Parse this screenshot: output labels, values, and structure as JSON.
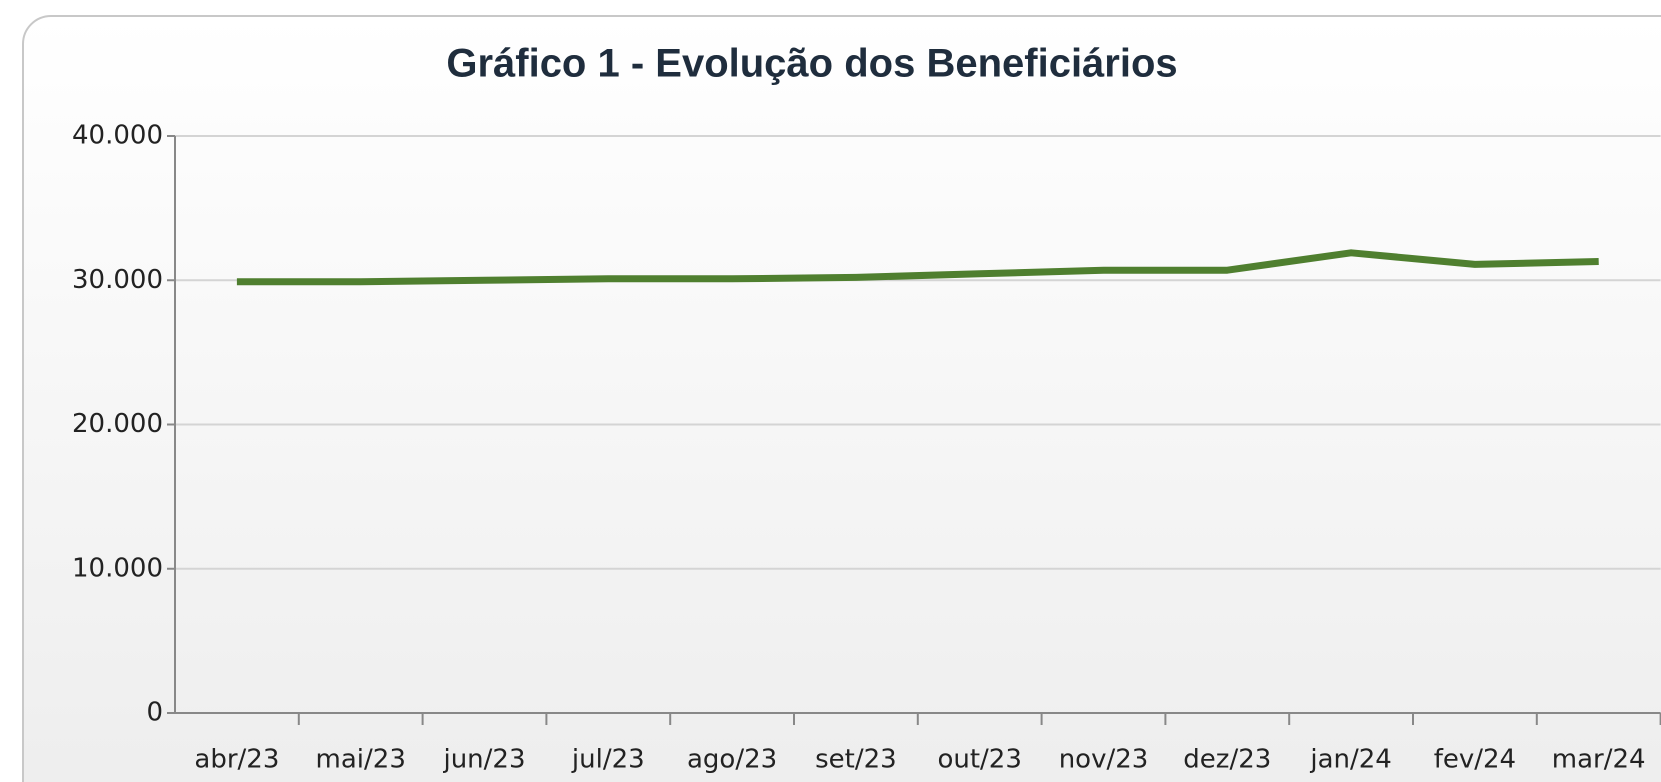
{
  "chart_data": {
    "type": "line",
    "title": "Gráfico 1 - Evolução dos Beneficiários",
    "categories": [
      "abr/23",
      "mai/23",
      "jun/23",
      "jul/23",
      "ago/23",
      "set/23",
      "out/23",
      "nov/23",
      "dez/23",
      "jan/24",
      "fev/24",
      "mar/24"
    ],
    "series": [
      {
        "name": "Beneficiários",
        "color": "#4f7f2f",
        "values": [
          29900,
          29900,
          30000,
          30100,
          30100,
          30200,
          30450,
          30700,
          30700,
          31900,
          31100,
          31300
        ]
      }
    ],
    "ylim": [
      0,
      40000
    ],
    "yticks": [
      0,
      {
        "value": 10000,
        "label": "10.000"
      },
      {
        "value": 20000,
        "label": "20.000"
      },
      {
        "value": 30000,
        "label": "30.000"
      },
      {
        "value": 40000,
        "label": "40.000"
      }
    ],
    "grid": true,
    "legend": false
  }
}
